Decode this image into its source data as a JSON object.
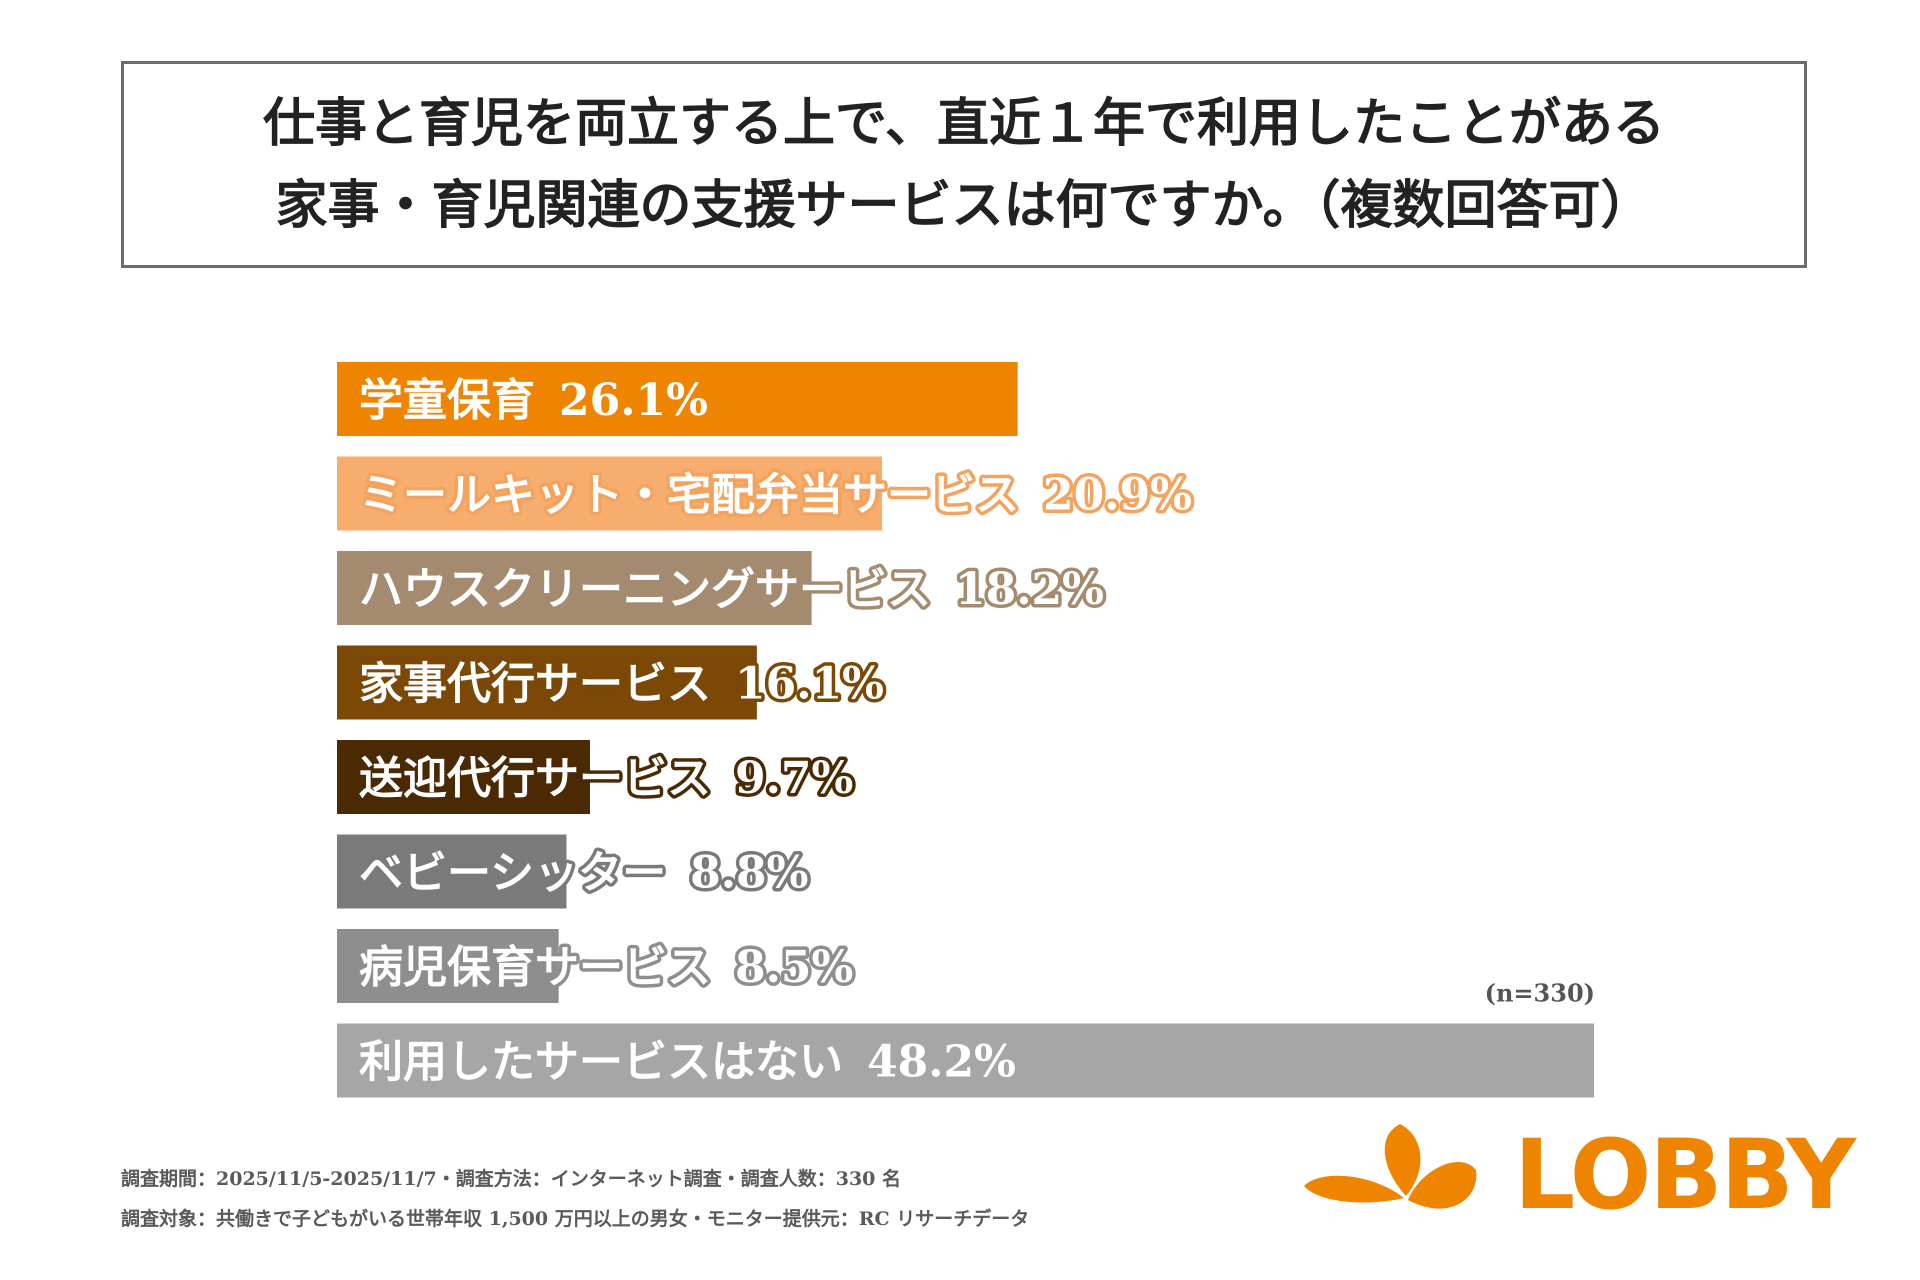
{
  "title": {
    "line1": "仕事と育児を両立する上で、直近１年で利用したことがある",
    "line2": "家事・育児関連の支援サービスは何ですか。（複数回答可）"
  },
  "chart_data": {
    "type": "bar",
    "orientation": "horizontal",
    "categories": [
      "学童保育",
      "ミールキット・宅配弁当サービス",
      "ハウスクリーニングサービス",
      "家事代行サービス",
      "送迎代行サービス",
      "ベビーシッター",
      "病児保育サービス",
      "利用したサービスはない"
    ],
    "values": [
      26.1,
      20.9,
      18.2,
      16.1,
      9.7,
      8.8,
      8.5,
      48.2
    ],
    "value_labels": [
      "26.1%",
      "20.9%",
      "18.2%",
      "16.1%",
      "9.7%",
      "8.8%",
      "8.5%",
      "48.2%"
    ],
    "colors": [
      "#ee8400",
      "#f7ad6d",
      "#a48b6f",
      "#7b4806",
      "#4b2a03",
      "#7a7a7a",
      "#8e8e8e",
      "#a6a6a6"
    ],
    "label_outline_colors": [
      "#ee8400",
      "#f4a35e",
      "#a48b6f",
      "#7b4806",
      "#4b2a03",
      "#7a7a7a",
      "#8e8e8e",
      "#a6a6a6"
    ],
    "xlim": [
      0,
      48.2
    ],
    "sample_size_label": "(n=330)",
    "grid": false,
    "legend": "none"
  },
  "footer": {
    "line1": "調査期間：2025/11/5-2025/11/7・調査方法：インターネット調査・調査人数：330 名",
    "line2": "調査対象：共働きで子どもがいる世帯年収 1,500 万円以上の男女・モニター提供元：RC リサーチデータ"
  },
  "logo": {
    "text": "LOBBY",
    "color": "#ee8400"
  }
}
